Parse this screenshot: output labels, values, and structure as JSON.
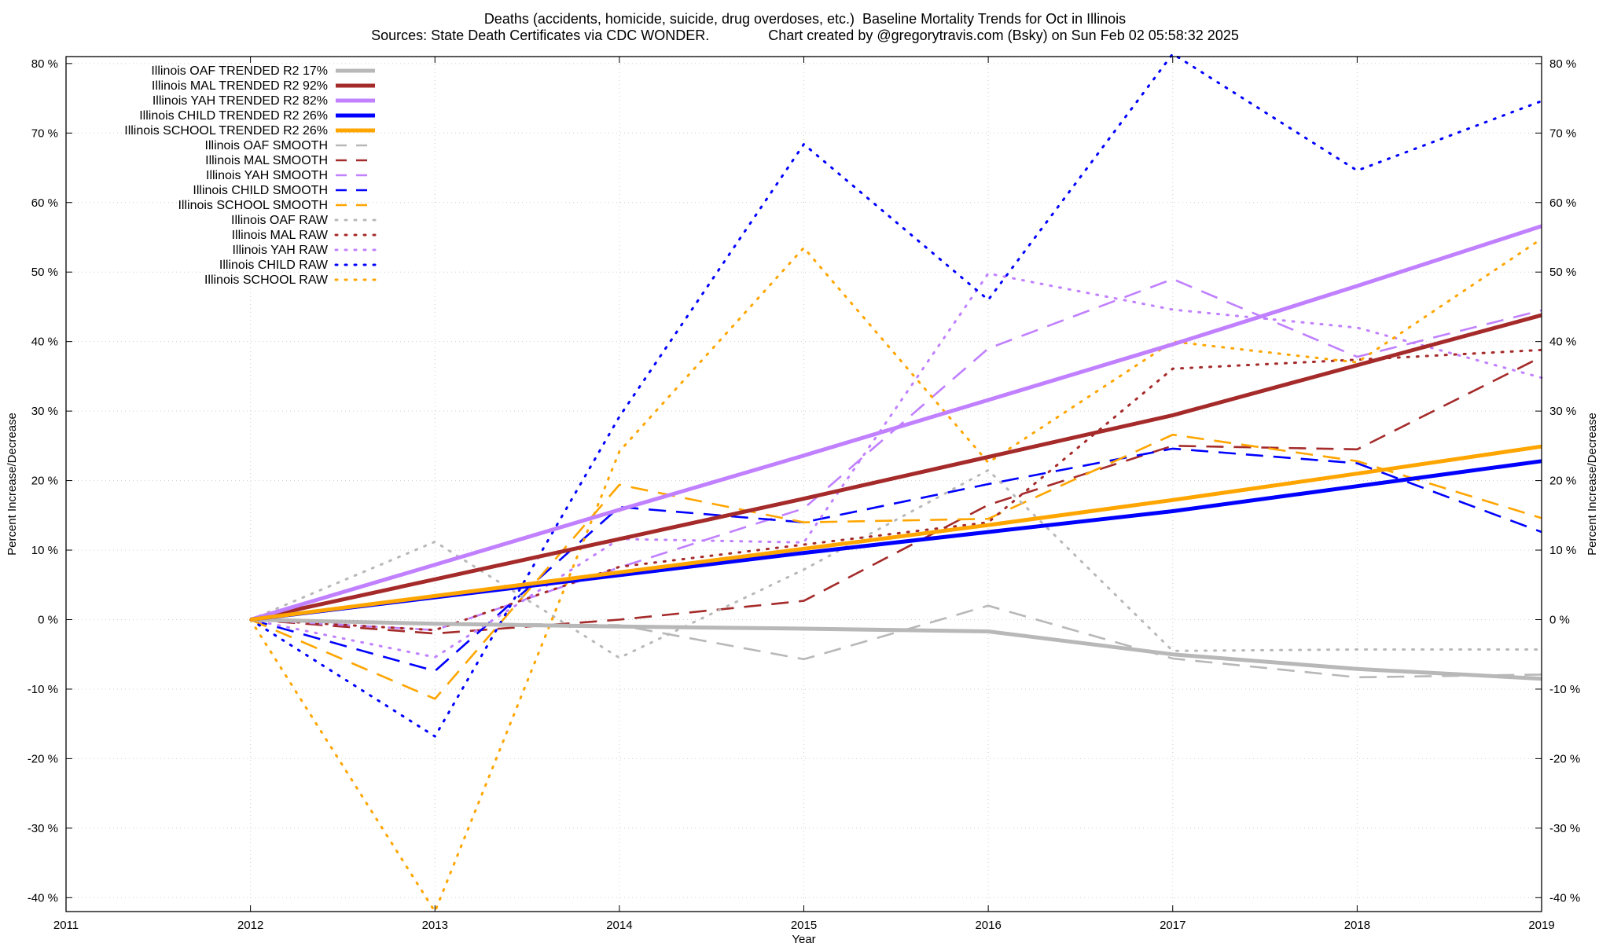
{
  "title_line_1": "Deaths (accidents, homicide, suicide, drug overdoses, etc.)  Baseline Mortality Trends for Oct in Illinois",
  "title_line_2": "Sources: State Death Certificates via CDC WONDER.               Chart created by @gregorytravis.com (Bsky) on Sun Feb 02 05:58:32 2025",
  "chart_data": {
    "type": "line",
    "title": "Deaths (accidents, homicide, suicide, drug overdoses, etc.)  Baseline Mortality Trends for Oct in Illinois",
    "subtitle": "Sources: State Death Certificates via CDC WONDER.               Chart created by @gregorytravis.com (Bsky) on Sun Feb 02 05:58:32 2025",
    "xlabel": "Year",
    "ylabel": "Percent Increase/Decrease",
    "ylabel_right": "Percent Increase/Decrease",
    "xlim": [
      2011,
      2019
    ],
    "ylim": [
      -42,
      81
    ],
    "x_ticks": [
      "2011",
      "2012",
      "2013",
      "2014",
      "2015",
      "2016",
      "2017",
      "2018",
      "2019"
    ],
    "y_ticks": [
      "-40 %",
      "-30 %",
      "-20 %",
      "-10 %",
      "0 %",
      "10 %",
      "20 %",
      "30 %",
      "40 %",
      "50 %",
      "60 %",
      "70 %",
      "80 %"
    ],
    "y_tick_values": [
      -40,
      -30,
      -20,
      -10,
      0,
      10,
      20,
      30,
      40,
      50,
      60,
      70,
      80
    ],
    "grid": true,
    "legend_position": "top-left",
    "x": [
      2012,
      2013,
      2014,
      2015,
      2016,
      2017,
      2018,
      2019
    ],
    "series": [
      {
        "name": "Illinois OAF TRENDED R2  17%",
        "style": "solid",
        "color": "#b8b8b8",
        "values": [
          0,
          -0.6,
          -1.0,
          -1.3,
          -1.7,
          -5.0,
          -7.1,
          -8.5
        ]
      },
      {
        "name": "Illinois MAL TRENDED R2  92%",
        "style": "solid",
        "color": "#a52a2a",
        "values": [
          0,
          5.8,
          11.6,
          17.4,
          23.4,
          29.4,
          36.6,
          43.8
        ]
      },
      {
        "name": "Illinois YAH TRENDED R2  82%",
        "style": "solid",
        "color": "#c080ff",
        "values": [
          0,
          7.9,
          15.8,
          23.6,
          31.6,
          39.6,
          48.0,
          56.6
        ]
      },
      {
        "name": "Illinois CHILD TRENDED R2  26%",
        "style": "solid",
        "color": "#0000ff",
        "values": [
          0,
          3.2,
          6.4,
          9.6,
          12.6,
          15.6,
          19.2,
          22.8
        ]
      },
      {
        "name": "Illinois SCHOOL TRENDED R2  26%",
        "style": "solid",
        "color": "#ffa500",
        "values": [
          0,
          3.4,
          6.8,
          10.2,
          13.6,
          17.2,
          21.0,
          24.9
        ]
      },
      {
        "name": "Illinois OAF SMOOTH",
        "style": "dashed",
        "color": "#b8b8b8",
        "values": [
          0,
          -0.5,
          -0.8,
          -5.7,
          2.0,
          -5.6,
          -8.3,
          -7.9
        ]
      },
      {
        "name": "Illinois MAL SMOOTH",
        "style": "dashed",
        "color": "#a52a2a",
        "values": [
          0,
          -2.0,
          0.0,
          2.7,
          16.5,
          25.0,
          24.5,
          37.8
        ]
      },
      {
        "name": "Illinois YAH SMOOTH",
        "style": "dashed",
        "color": "#c080ff",
        "values": [
          0,
          -1.5,
          7.5,
          16.0,
          39.0,
          49.0,
          37.8,
          44.5
        ]
      },
      {
        "name": "Illinois CHILD SMOOTH",
        "style": "dashed",
        "color": "#0000ff",
        "values": [
          0,
          -7.4,
          16.2,
          14.0,
          19.5,
          24.6,
          22.5,
          12.6
        ]
      },
      {
        "name": "Illinois SCHOOL SMOOTH",
        "style": "dashed",
        "color": "#ffa500",
        "values": [
          0,
          -11.4,
          19.4,
          14.0,
          14.5,
          26.6,
          22.8,
          14.6
        ]
      },
      {
        "name": "Illinois OAF RAW",
        "style": "dotted",
        "color": "#b8b8b8",
        "values": [
          0,
          11.2,
          -5.5,
          7.2,
          21.5,
          -4.5,
          -4.3,
          -4.3
        ]
      },
      {
        "name": "Illinois MAL RAW",
        "style": "dotted",
        "color": "#a52a2a",
        "values": [
          0,
          -1.5,
          7.6,
          10.8,
          14.0,
          36.1,
          37.4,
          38.8
        ]
      },
      {
        "name": "Illinois YAH RAW",
        "style": "dotted",
        "color": "#c080ff",
        "values": [
          0,
          -5.4,
          11.6,
          11.1,
          49.8,
          44.6,
          42.0,
          34.8
        ]
      },
      {
        "name": "Illinois CHILD RAW",
        "style": "dotted",
        "color": "#0000ff",
        "values": [
          0,
          -16.8,
          29.2,
          68.4,
          46.0,
          81.4,
          64.6,
          74.6
        ]
      },
      {
        "name": "Illinois SCHOOL RAW",
        "style": "dotted",
        "color": "#ffa500",
        "values": [
          0,
          -42.0,
          24.2,
          53.5,
          22.6,
          40.0,
          37.0,
          54.8
        ]
      }
    ]
  }
}
